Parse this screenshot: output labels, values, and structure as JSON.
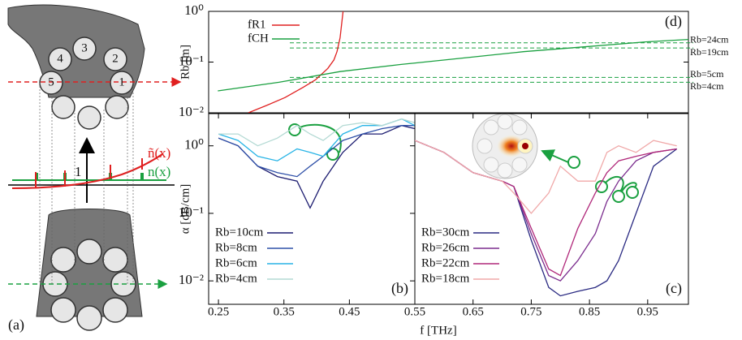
{
  "chart_data": [
    {
      "type": "line",
      "panel_label": "(d)",
      "ylabel": "Rb [m]",
      "ylog": true,
      "xlim": [
        0.235,
        1.02
      ],
      "ylim": [
        0.01,
        1
      ],
      "yticks": [
        {
          "value": 0.01,
          "label": "10⁻²"
        },
        {
          "value": 0.1,
          "label": "10⁻¹"
        },
        {
          "value": 1,
          "label": "10⁰"
        }
      ],
      "legend": "upper left",
      "series": [
        {
          "name": "fR1",
          "color": "#e02020",
          "x": [
            0.3,
            0.33,
            0.36,
            0.39,
            0.41,
            0.43,
            0.44,
            0.445,
            0.45,
            0.455
          ],
          "values": [
            0.01,
            0.014,
            0.02,
            0.032,
            0.045,
            0.075,
            0.11,
            0.16,
            0.3,
            1
          ]
        },
        {
          "name": "fCH",
          "color": "#1aa040",
          "x": [
            0.25,
            0.35,
            0.45,
            0.55,
            0.65,
            0.75,
            0.85,
            0.95,
            1.02
          ],
          "values": [
            0.027,
            0.04,
            0.065,
            0.09,
            0.12,
            0.16,
            0.2,
            0.25,
            0.28
          ]
        }
      ],
      "annotations": [
        {
          "text": "Rb=24cm",
          "value": 0.24
        },
        {
          "text": "Rb=19cm",
          "value": 0.19
        },
        {
          "text": "Rb=5cm",
          "value": 0.05
        },
        {
          "text": "Rb=4cm",
          "value": 0.04
        }
      ]
    },
    {
      "type": "line",
      "panel_label": "(b)",
      "ylabel": "α [dB/cm]",
      "ylog": true,
      "xlim": [
        0.235,
        0.55
      ],
      "ylim": [
        0.0045,
        3
      ],
      "xticks": [
        0.25,
        0.35,
        0.45
      ],
      "yticks": [
        {
          "value": 0.01,
          "label": "10⁻²"
        },
        {
          "value": 0.1,
          "label": "10⁻¹"
        },
        {
          "value": 1,
          "label": "10⁰"
        }
      ],
      "legend": "lower left",
      "series": [
        {
          "name": "Rb=10cm",
          "color": "#1c1c70",
          "x": [
            0.25,
            0.28,
            0.31,
            0.34,
            0.37,
            0.39,
            0.41,
            0.44,
            0.47,
            0.5,
            0.53,
            0.55
          ],
          "values": [
            1.3,
            1.0,
            0.5,
            0.35,
            0.3,
            0.12,
            0.3,
            0.8,
            1.5,
            1.5,
            2,
            1.8
          ]
        },
        {
          "name": "Rb=8cm",
          "color": "#2f50a8",
          "x": [
            0.25,
            0.28,
            0.31,
            0.34,
            0.37,
            0.39,
            0.41,
            0.44,
            0.47,
            0.5,
            0.53,
            0.55
          ],
          "values": [
            1.3,
            1.0,
            0.5,
            0.4,
            0.35,
            0.5,
            0.7,
            1.2,
            1.5,
            1.8,
            2,
            2
          ]
        },
        {
          "name": "Rb=6cm",
          "color": "#28b4e6",
          "x": [
            0.25,
            0.28,
            0.31,
            0.34,
            0.37,
            0.39,
            0.41,
            0.44,
            0.47,
            0.5,
            0.53,
            0.55
          ],
          "values": [
            1.5,
            1.2,
            0.7,
            0.6,
            0.9,
            0.8,
            0.7,
            1.5,
            2,
            2,
            2.5,
            2
          ]
        },
        {
          "name": "Rb=4cm",
          "color": "#b4dad4",
          "x": [
            0.25,
            0.28,
            0.31,
            0.34,
            0.37,
            0.39,
            0.41,
            0.44,
            0.47,
            0.5,
            0.53,
            0.55
          ],
          "values": [
            1.5,
            1.5,
            1,
            1.3,
            2,
            1.5,
            1.2,
            2,
            2.2,
            2,
            2.5,
            2.2
          ]
        }
      ]
    },
    {
      "type": "line",
      "panel_label": "(c)",
      "xlabel": "f [THz]",
      "ylog": true,
      "xlim": [
        0.55,
        1.02
      ],
      "ylim": [
        0.0045,
        3
      ],
      "xticks": [
        0.55,
        0.65,
        0.75,
        0.85,
        0.95
      ],
      "legend": "lower left",
      "series": [
        {
          "name": "Rb=30cm",
          "color": "#2a2a82",
          "x": [
            0.55,
            0.6,
            0.65,
            0.7,
            0.72,
            0.75,
            0.78,
            0.8,
            0.83,
            0.86,
            0.88,
            0.9,
            0.93,
            0.96,
            1.0
          ],
          "values": [
            1.2,
            0.8,
            0.4,
            0.3,
            0.25,
            0.04,
            0.008,
            0.006,
            0.007,
            0.008,
            0.01,
            0.02,
            0.1,
            0.5,
            0.9
          ]
        },
        {
          "name": "Rb=26cm",
          "color": "#7b2d8e",
          "x": [
            0.55,
            0.6,
            0.65,
            0.7,
            0.72,
            0.75,
            0.78,
            0.8,
            0.83,
            0.86,
            0.88,
            0.9,
            0.93,
            0.96,
            1.0
          ],
          "values": [
            1.2,
            0.8,
            0.4,
            0.3,
            0.25,
            0.05,
            0.012,
            0.01,
            0.02,
            0.05,
            0.15,
            0.3,
            0.6,
            0.8,
            0.9
          ]
        },
        {
          "name": "Rb=22cm",
          "color": "#b0287a",
          "x": [
            0.55,
            0.6,
            0.65,
            0.7,
            0.72,
            0.75,
            0.78,
            0.8,
            0.83,
            0.86,
            0.88,
            0.9,
            0.93,
            0.96,
            1.0
          ],
          "values": [
            1.2,
            0.8,
            0.4,
            0.3,
            0.25,
            0.06,
            0.015,
            0.012,
            0.06,
            0.2,
            0.4,
            0.6,
            0.7,
            0.8,
            0.9
          ]
        },
        {
          "name": "Rb=18cm",
          "color": "#f0a8a8",
          "x": [
            0.55,
            0.6,
            0.65,
            0.7,
            0.72,
            0.75,
            0.78,
            0.8,
            0.83,
            0.86,
            0.88,
            0.9,
            0.93,
            0.96,
            1.0
          ],
          "values": [
            1.2,
            0.8,
            0.4,
            0.3,
            0.2,
            0.1,
            0.2,
            0.5,
            0.3,
            0.3,
            0.8,
            1.0,
            0.8,
            1.2,
            1.0
          ]
        }
      ]
    }
  ],
  "diagram": {
    "fiber_labels": [
      "4",
      "3",
      "2",
      "5",
      "1"
    ],
    "n_tilde": "ñ(x)",
    "n": "n(x)",
    "index_one": "1",
    "label": "(a)"
  }
}
